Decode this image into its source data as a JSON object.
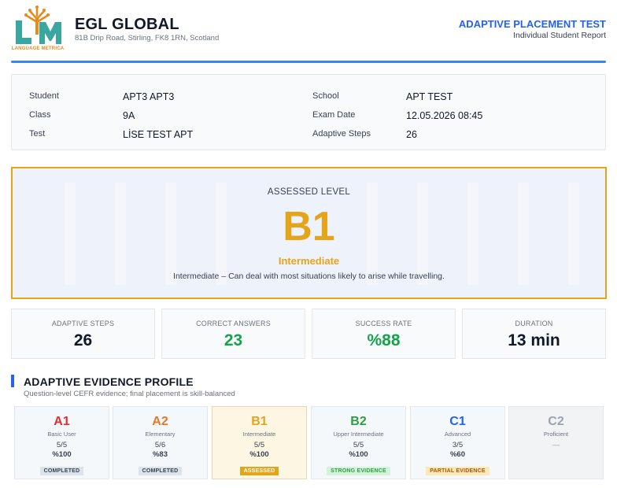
{
  "header": {
    "logo_caption": "LANGUAGE METRICA",
    "org_name": "EGL GLOBAL",
    "address": "81B Drip Road, Stirling, FK8 1RN, Scotland",
    "report_title": "ADAPTIVE PLACEMENT TEST",
    "report_subtitle": "Individual Student Report"
  },
  "info": {
    "student_label": "Student",
    "student": "APT3 APT3",
    "class_label": "Class",
    "class": "9A",
    "test_label": "Test",
    "test": "LİSE TEST APT",
    "school_label": "School",
    "school": "APT TEST",
    "exam_date_label": "Exam Date",
    "exam_date": "12.05.2026 08:45",
    "steps_label": "Adaptive Steps",
    "steps": "26"
  },
  "level": {
    "label": "ASSESSED LEVEL",
    "code": "B1",
    "name": "Intermediate",
    "description": "Intermediate – Can deal with most situations likely to arise while travelling."
  },
  "stats": [
    {
      "label": "ADAPTIVE STEPS",
      "value": "26",
      "color": "#111827"
    },
    {
      "label": "CORRECT ANSWERS",
      "value": "23",
      "color": "#16a34a"
    },
    {
      "label": "SUCCESS RATE",
      "value": "%88",
      "color": "#16a34a"
    },
    {
      "label": "DURATION",
      "value": "13 min",
      "color": "#111827"
    }
  ],
  "profile": {
    "title": "ADAPTIVE EVIDENCE PROFILE",
    "subtitle": "Question-level CEFR evidence; final placement is skill-balanced",
    "levels": [
      {
        "code": "A1",
        "name": "Basic User",
        "fraction": "5/5",
        "percent": "%100",
        "badge": "COMPLETED",
        "code_color": "#e03131",
        "badge_bg": "#dde3ea",
        "badge_fg": "#374151"
      },
      {
        "code": "A2",
        "name": "Elementary",
        "fraction": "5/6",
        "percent": "%83",
        "badge": "COMPLETED",
        "code_color": "#e8772a",
        "badge_bg": "#dde3ea",
        "badge_fg": "#374151"
      },
      {
        "code": "B1",
        "name": "Intermediate",
        "fraction": "5/5",
        "percent": "%100",
        "badge": "ASSESSED",
        "code_color": "#e5a51b",
        "badge_bg": "#e5a51b",
        "badge_fg": "#ffffff"
      },
      {
        "code": "B2",
        "name": "Upper Intermediate",
        "fraction": "5/5",
        "percent": "%100",
        "badge": "STRONG EVIDENCE",
        "code_color": "#2f9e44",
        "badge_bg": "#d3f3da",
        "badge_fg": "#2f9e44"
      },
      {
        "code": "C1",
        "name": "Advanced",
        "fraction": "3/5",
        "percent": "%60",
        "badge": "PARTIAL EVIDENCE",
        "code_color": "#2563eb",
        "badge_bg": "#fde8b8",
        "badge_fg": "#b45309"
      },
      {
        "code": "C2",
        "name": "Proficient",
        "fraction": "—",
        "percent": "",
        "badge": "",
        "code_color": "#9ca3af",
        "badge_bg": "",
        "badge_fg": ""
      }
    ]
  }
}
